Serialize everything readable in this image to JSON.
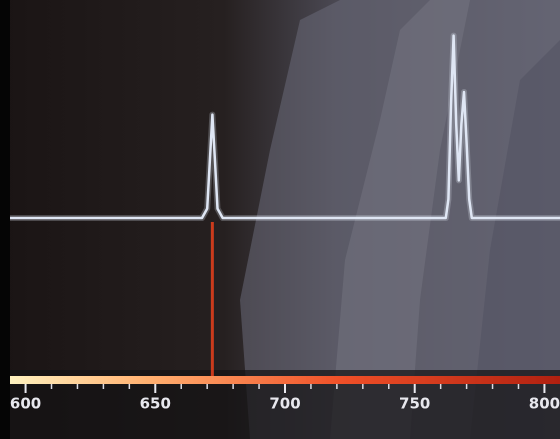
{
  "chart_data": {
    "type": "line",
    "x": [
      594,
      668,
      670,
      671,
      672,
      673,
      674,
      676,
      762,
      763,
      764,
      765,
      766,
      767,
      768,
      769,
      770,
      771,
      772,
      806
    ],
    "values": [
      0,
      0,
      0.05,
      0.3,
      0.55,
      0.3,
      0.05,
      0,
      0,
      0.1,
      0.6,
      0.97,
      0.5,
      0.2,
      0.5,
      0.67,
      0.4,
      0.1,
      0,
      0
    ],
    "color": "#dfe6f4",
    "marker_x": 672,
    "marker_color": "#e8401c",
    "xlim": [
      594,
      806
    ],
    "ylim": [
      0,
      1
    ],
    "xticks": [
      600,
      650,
      700,
      750,
      800
    ],
    "minor_xticks": [
      610,
      620,
      630,
      640,
      660,
      670,
      680,
      690,
      710,
      720,
      730,
      740,
      760,
      770,
      780,
      790
    ]
  }
}
